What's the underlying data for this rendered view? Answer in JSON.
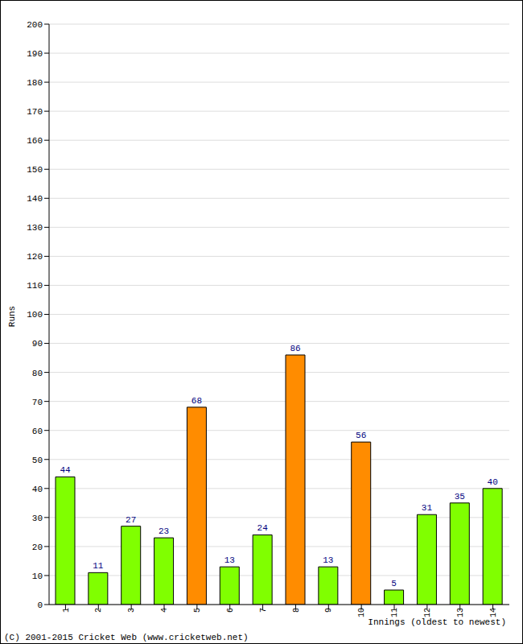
{
  "chart_data": {
    "type": "bar",
    "x_label": "Innings (oldest to newest)",
    "y_label": "Runs",
    "annotation": "(C) 2001-2015 Cricket Web (www.cricketweb.net)",
    "categories": [
      "1",
      "2",
      "3",
      "4",
      "5",
      "6",
      "7",
      "8",
      "9",
      "10",
      "11",
      "12",
      "13",
      "14"
    ],
    "values": [
      44,
      11,
      27,
      23,
      68,
      13,
      24,
      86,
      13,
      56,
      5,
      31,
      35,
      40
    ],
    "colors": [
      "#80ff00",
      "#80ff00",
      "#80ff00",
      "#80ff00",
      "#ff8c00",
      "#80ff00",
      "#80ff00",
      "#ff8c00",
      "#80ff00",
      "#ff8c00",
      "#80ff00",
      "#80ff00",
      "#80ff00",
      "#80ff00"
    ],
    "ylim": [
      0,
      200
    ],
    "yticks": [
      0,
      10,
      20,
      30,
      40,
      50,
      60,
      70,
      80,
      90,
      100,
      110,
      120,
      130,
      140,
      150,
      160,
      170,
      180,
      190,
      200
    ],
    "grid": true,
    "data_labels": true
  }
}
